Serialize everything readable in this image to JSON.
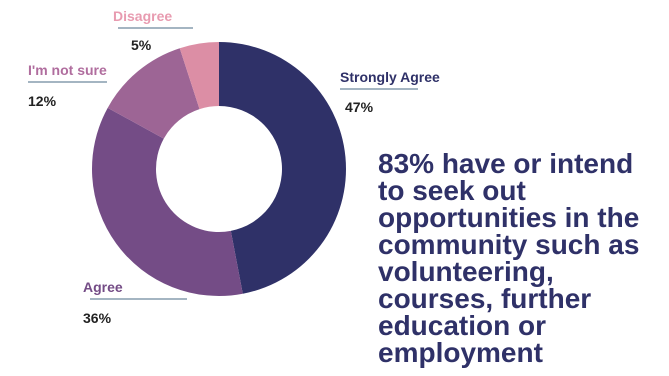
{
  "chart_data": {
    "type": "pie",
    "donut": true,
    "slices": [
      {
        "label": "Strongly Agree",
        "value": 47,
        "value_label": "47%",
        "color": "#2f3168"
      },
      {
        "label": "Agree",
        "value": 36,
        "value_label": "36%",
        "color": "#744c86"
      },
      {
        "label": "I'm not sure",
        "value": 12,
        "value_label": "12%",
        "color": "#9d6595"
      },
      {
        "label": "Disagree",
        "value": 5,
        "value_label": "5%",
        "color": "#dc8ea5"
      }
    ],
    "label_colors": {
      "Strongly Agree": "#2f3168",
      "Agree": "#744c86",
      "I'm not sure": "#b06d9e",
      "Disagree": "#e89bb0"
    }
  },
  "headline": {
    "lines": [
      "83% have or intend",
      "to seek out",
      "opportunities in the",
      "community such as",
      "volunteering,",
      "courses, further",
      "education or",
      "employment"
    ]
  }
}
